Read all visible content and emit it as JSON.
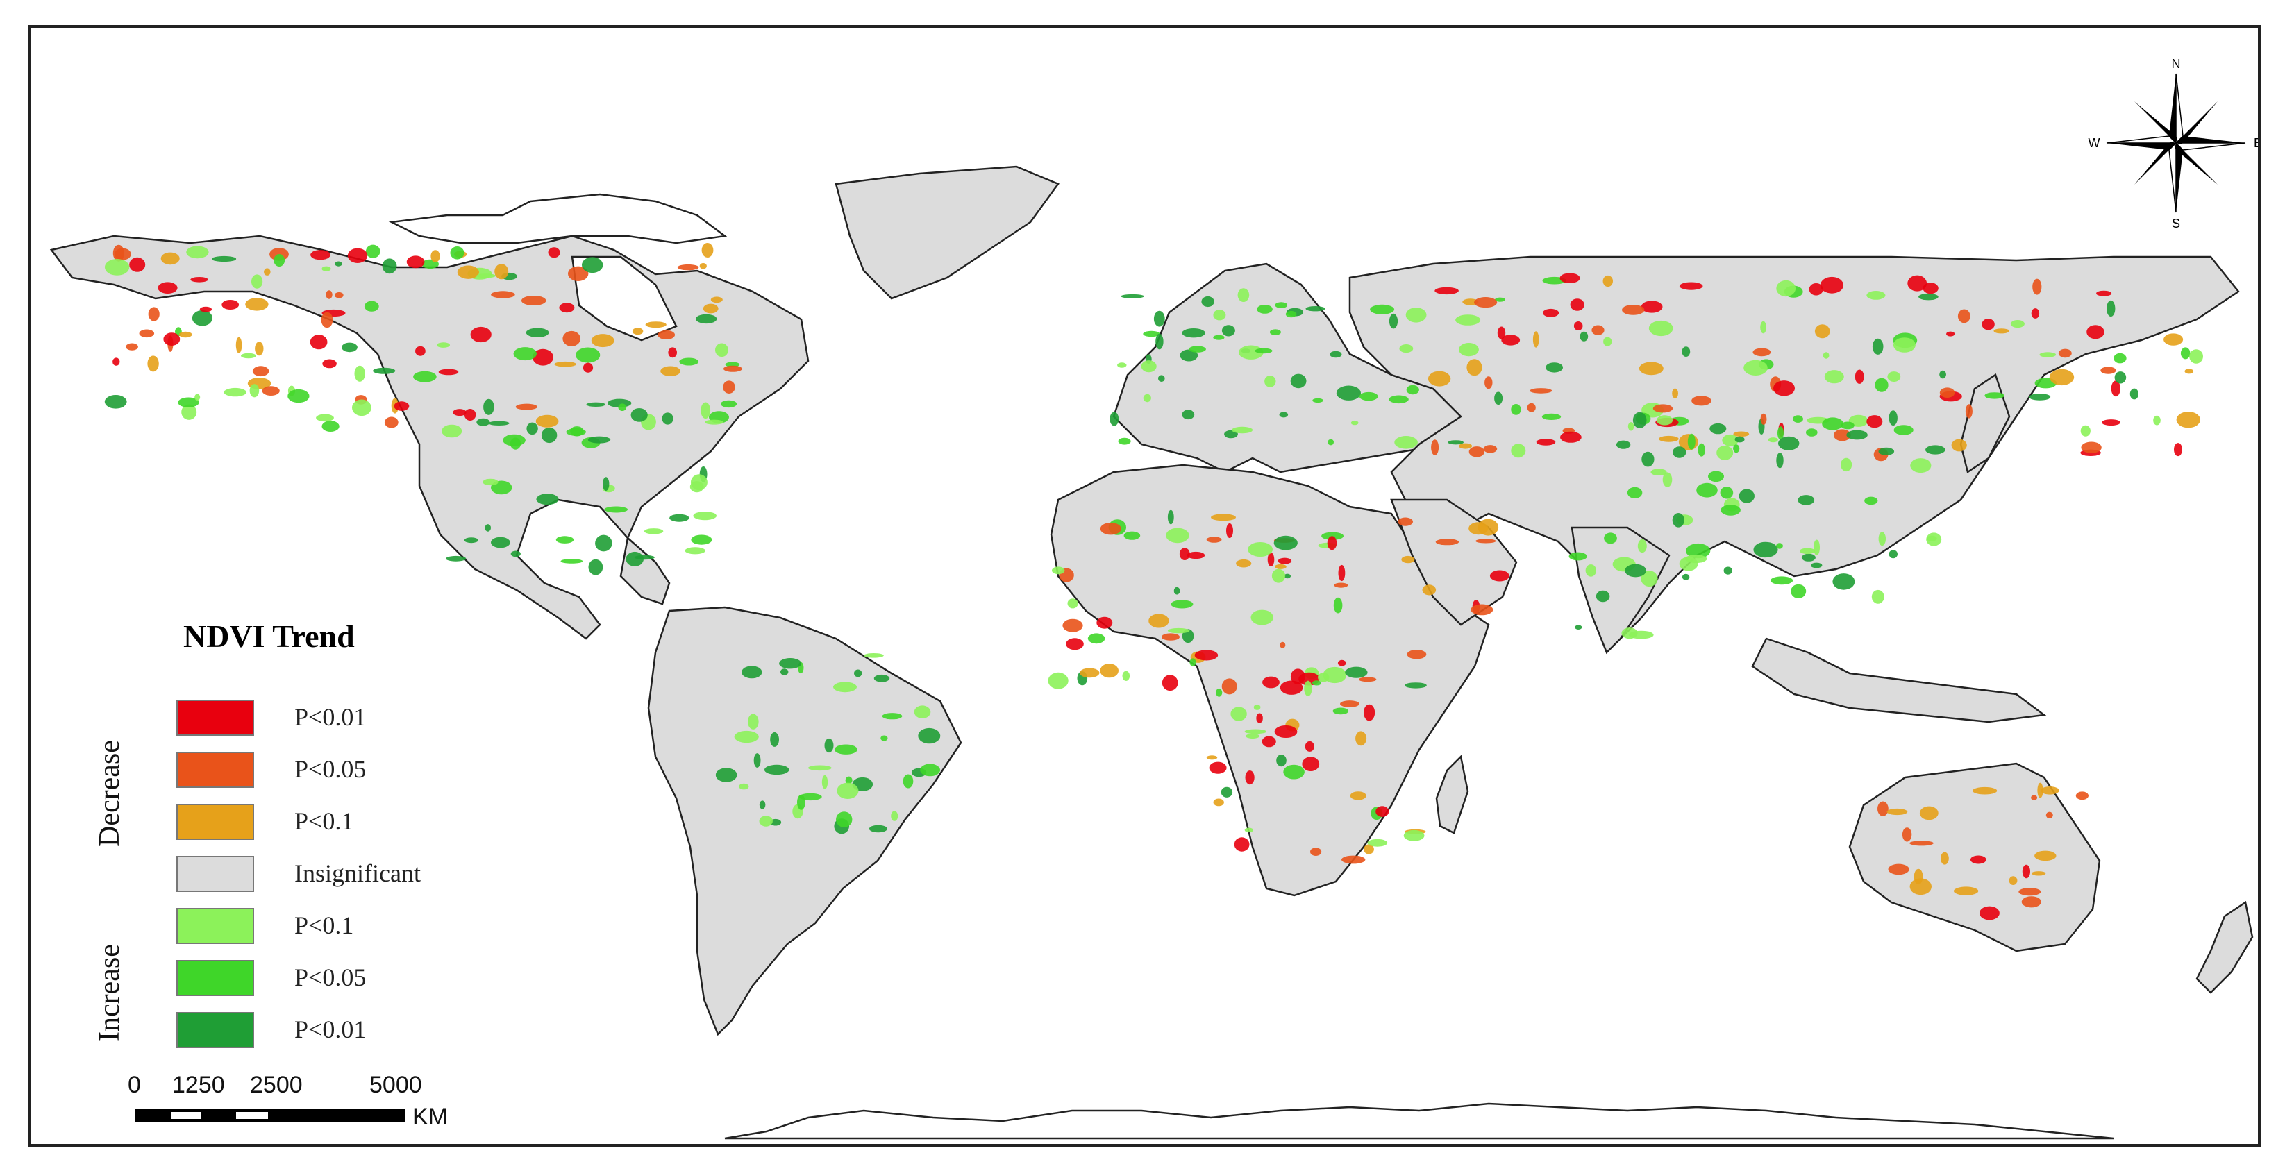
{
  "legend": {
    "title": "NDVI Trend",
    "groups": {
      "decrease": "Decrease",
      "increase": "Increase"
    },
    "classes": [
      {
        "label": "P<0.01",
        "color": "#e8000e",
        "group": "decrease"
      },
      {
        "label": "P<0.05",
        "color": "#e9531a",
        "group": "decrease"
      },
      {
        "label": "P<0.1",
        "color": "#e6a11a",
        "group": "decrease"
      },
      {
        "label": "Insignificant",
        "color": "#dcdcdc",
        "group": "none"
      },
      {
        "label": "P<0.1",
        "color": "#8cf25a",
        "group": "increase"
      },
      {
        "label": "P<0.05",
        "color": "#3fd629",
        "group": "increase"
      },
      {
        "label": "P<0.01",
        "color": "#1f9e35",
        "group": "increase"
      }
    ]
  },
  "scale_bar": {
    "ticks": [
      "0",
      "1250",
      "2500",
      "5000"
    ],
    "unit": "KM"
  },
  "compass": {
    "n": "N",
    "s": "S",
    "e": "E",
    "w": "W"
  },
  "colors": {
    "land": "#dcdcdc",
    "ocean": "#ffffff",
    "outline": "#222222"
  }
}
